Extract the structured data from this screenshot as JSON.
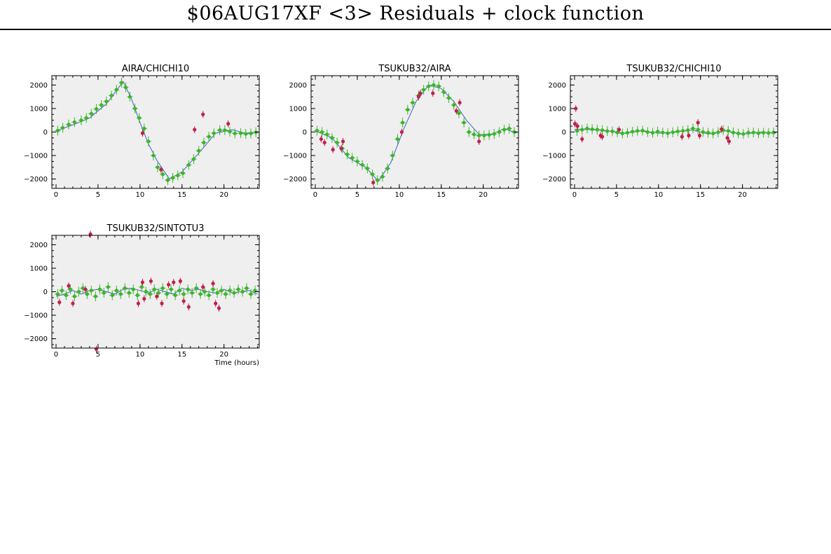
{
  "title": "$06AUG17XF <3> Residuals + clock function",
  "colors": {
    "good": "#3cb52a",
    "bad": "#c0204a",
    "clock": "#4060d0",
    "plot_bg": "#efefef"
  },
  "chart_data": [
    {
      "type": "scatter",
      "title": "AIRA/CHICHI10",
      "xlabel": "",
      "xlim": [
        -0.5,
        24.2
      ],
      "ylim": [
        -2400,
        2400
      ],
      "xticks": [
        0,
        5,
        10,
        15,
        20
      ],
      "yticks": [
        -2000,
        -1000,
        0,
        1000,
        2000
      ],
      "ytick_labels": [
        "−2000",
        "−1000",
        "0",
        "1000",
        "2000"
      ],
      "clock": [
        [
          0,
          50
        ],
        [
          2,
          300
        ],
        [
          4,
          600
        ],
        [
          6,
          1200
        ],
        [
          8,
          2150
        ],
        [
          9,
          1400
        ],
        [
          10,
          400
        ],
        [
          11,
          -500
        ],
        [
          12,
          -1200
        ],
        [
          13.5,
          -2000
        ],
        [
          15,
          -1700
        ],
        [
          17,
          -900
        ],
        [
          19,
          -50
        ],
        [
          21,
          100
        ],
        [
          22.5,
          -50
        ],
        [
          24,
          0
        ]
      ],
      "good": [
        [
          0.2,
          60
        ],
        [
          0.8,
          180
        ],
        [
          1.5,
          320
        ],
        [
          2.2,
          420
        ],
        [
          3,
          500
        ],
        [
          3.6,
          600
        ],
        [
          4.2,
          780
        ],
        [
          4.8,
          980
        ],
        [
          5.4,
          1150
        ],
        [
          6,
          1300
        ],
        [
          6.6,
          1550
        ],
        [
          7.2,
          1800
        ],
        [
          7.8,
          2100
        ],
        [
          8.3,
          1900
        ],
        [
          8.8,
          1500
        ],
        [
          9.4,
          1000
        ],
        [
          9.9,
          600
        ],
        [
          10.5,
          150
        ],
        [
          11,
          -400
        ],
        [
          11.6,
          -1000
        ],
        [
          12.1,
          -1500
        ],
        [
          12.7,
          -1800
        ],
        [
          13.3,
          -2050
        ],
        [
          13.9,
          -1950
        ],
        [
          14.5,
          -1850
        ],
        [
          15.1,
          -1750
        ],
        [
          15.8,
          -1400
        ],
        [
          16.4,
          -1150
        ],
        [
          17,
          -800
        ],
        [
          17.6,
          -450
        ],
        [
          18.2,
          -200
        ],
        [
          18.8,
          -50
        ],
        [
          19.5,
          80
        ],
        [
          20.1,
          80
        ],
        [
          20.7,
          20
        ],
        [
          21.3,
          -60
        ],
        [
          22,
          -50
        ],
        [
          22.6,
          -80
        ],
        [
          23.2,
          -60
        ],
        [
          23.8,
          -10
        ]
      ],
      "bad": [
        [
          10.3,
          -50
        ],
        [
          12.5,
          -1600
        ],
        [
          16.5,
          100
        ],
        [
          17.5,
          750
        ],
        [
          20.5,
          350
        ]
      ]
    },
    {
      "type": "scatter",
      "title": "TSUKUB32/AIRA",
      "xlabel": "",
      "xlim": [
        -0.5,
        24.2
      ],
      "ylim": [
        -2400,
        2400
      ],
      "xticks": [
        0,
        5,
        10,
        15,
        20
      ],
      "yticks": [
        -2000,
        -1000,
        0,
        1000,
        2000
      ],
      "ytick_labels": [
        "−2000",
        "−1000",
        "0",
        "1000",
        "2000"
      ],
      "clock": [
        [
          0,
          50
        ],
        [
          2,
          -250
        ],
        [
          4,
          -1100
        ],
        [
          6,
          -1500
        ],
        [
          7.5,
          -2100
        ],
        [
          9,
          -1300
        ],
        [
          10.5,
          100
        ],
        [
          12,
          1300
        ],
        [
          13.5,
          2000
        ],
        [
          15,
          1850
        ],
        [
          16.5,
          1300
        ],
        [
          18,
          500
        ],
        [
          19.5,
          -100
        ],
        [
          21,
          -100
        ],
        [
          22.5,
          150
        ],
        [
          24,
          -50
        ]
      ],
      "good": [
        [
          0.2,
          60
        ],
        [
          0.8,
          0
        ],
        [
          1.4,
          -100
        ],
        [
          2,
          -250
        ],
        [
          2.6,
          -450
        ],
        [
          3.2,
          -700
        ],
        [
          3.8,
          -950
        ],
        [
          4.4,
          -1100
        ],
        [
          5,
          -1250
        ],
        [
          5.6,
          -1400
        ],
        [
          6.2,
          -1550
        ],
        [
          6.8,
          -1800
        ],
        [
          7.4,
          -2050
        ],
        [
          8,
          -1900
        ],
        [
          8.6,
          -1550
        ],
        [
          9.2,
          -1000
        ],
        [
          9.8,
          -300
        ],
        [
          10.4,
          400
        ],
        [
          11,
          950
        ],
        [
          11.6,
          1250
        ],
        [
          12.3,
          1550
        ],
        [
          12.9,
          1800
        ],
        [
          13.5,
          1950
        ],
        [
          14.1,
          2000
        ],
        [
          14.7,
          1950
        ],
        [
          15.3,
          1700
        ],
        [
          15.9,
          1450
        ],
        [
          16.5,
          1150
        ],
        [
          17.1,
          800
        ],
        [
          17.7,
          400
        ],
        [
          18.3,
          0
        ],
        [
          18.9,
          -100
        ],
        [
          19.5,
          -150
        ],
        [
          20.1,
          -150
        ],
        [
          20.7,
          -120
        ],
        [
          21.3,
          -80
        ],
        [
          21.9,
          0
        ],
        [
          22.5,
          100
        ],
        [
          23.1,
          150
        ],
        [
          23.7,
          0
        ]
      ],
      "bad": [
        [
          0.7,
          -300
        ],
        [
          1.1,
          -450
        ],
        [
          2.1,
          -750
        ],
        [
          3.1,
          -700
        ],
        [
          3.3,
          -400
        ],
        [
          6.9,
          -2150
        ],
        [
          10.3,
          0
        ],
        [
          12.3,
          1500
        ],
        [
          12.5,
          1650
        ],
        [
          14,
          1650
        ],
        [
          16.8,
          900
        ],
        [
          17.2,
          1250
        ],
        [
          19.5,
          -400
        ]
      ]
    },
    {
      "type": "scatter",
      "title": "TSUKUB32/CHICHI10",
      "xlabel": "",
      "xlim": [
        -0.5,
        24.2
      ],
      "ylim": [
        -2400,
        2400
      ],
      "xticks": [
        0,
        5,
        10,
        15,
        20
      ],
      "yticks": [
        -2000,
        -1000,
        0,
        1000,
        2000
      ],
      "ytick_labels": [
        "−2000",
        "−1000",
        "0",
        "1000",
        "2000"
      ],
      "clock": [
        [
          0,
          120
        ],
        [
          2,
          100
        ],
        [
          4,
          50
        ],
        [
          6,
          -50
        ],
        [
          8,
          50
        ],
        [
          10,
          -50
        ],
        [
          12,
          0
        ],
        [
          14,
          80
        ],
        [
          16,
          -80
        ],
        [
          18,
          50
        ],
        [
          20,
          -100
        ],
        [
          22,
          0
        ],
        [
          24,
          -50
        ]
      ],
      "good": [
        [
          0.3,
          50
        ],
        [
          0.9,
          100
        ],
        [
          1.5,
          150
        ],
        [
          2.1,
          120
        ],
        [
          2.7,
          100
        ],
        [
          3.3,
          80
        ],
        [
          3.9,
          40
        ],
        [
          4.5,
          30
        ],
        [
          5.1,
          -20
        ],
        [
          5.7,
          -60
        ],
        [
          6.3,
          -30
        ],
        [
          6.9,
          20
        ],
        [
          7.5,
          50
        ],
        [
          8.1,
          60
        ],
        [
          8.7,
          0
        ],
        [
          9.3,
          -30
        ],
        [
          9.9,
          20
        ],
        [
          10.5,
          -20
        ],
        [
          11.1,
          -50
        ],
        [
          11.7,
          -10
        ],
        [
          12.3,
          30
        ],
        [
          12.9,
          50
        ],
        [
          13.5,
          80
        ],
        [
          14.1,
          150
        ],
        [
          14.7,
          100
        ],
        [
          15.3,
          0
        ],
        [
          15.9,
          -30
        ],
        [
          16.5,
          -60
        ],
        [
          17.1,
          -10
        ],
        [
          17.7,
          80
        ],
        [
          18.3,
          50
        ],
        [
          18.9,
          -20
        ],
        [
          19.5,
          -60
        ],
        [
          20.1,
          -80
        ],
        [
          20.7,
          -30
        ],
        [
          21.3,
          -20
        ],
        [
          21.9,
          -50
        ],
        [
          22.5,
          -30
        ],
        [
          23.1,
          -40
        ],
        [
          23.7,
          -20
        ]
      ],
      "bad": [
        [
          0.05,
          350
        ],
        [
          0.15,
          1000
        ],
        [
          0.35,
          250
        ],
        [
          0.9,
          -300
        ],
        [
          3.1,
          -150
        ],
        [
          3.3,
          -200
        ],
        [
          5.3,
          100
        ],
        [
          12.8,
          -200
        ],
        [
          13.6,
          -150
        ],
        [
          14.7,
          400
        ],
        [
          14.9,
          -150
        ],
        [
          17.5,
          120
        ],
        [
          18.2,
          -250
        ],
        [
          18.4,
          -400
        ]
      ]
    },
    {
      "type": "scatter",
      "title": "TSUKUB32/SINTOTU3",
      "xlabel": "Time (hours)",
      "xlim": [
        -0.5,
        24.2
      ],
      "ylim": [
        -2400,
        2400
      ],
      "xticks": [
        0,
        5,
        10,
        15,
        20
      ],
      "yticks": [
        -2000,
        -1000,
        0,
        1000,
        2000
      ],
      "ytick_labels": [
        "−2000",
        "−1000",
        "0",
        "1000",
        "2000"
      ],
      "clock": [
        [
          0,
          -200
        ],
        [
          1,
          -100
        ],
        [
          2,
          50
        ],
        [
          3,
          -100
        ],
        [
          4,
          50
        ],
        [
          5,
          100
        ],
        [
          6,
          0
        ],
        [
          7,
          -100
        ],
        [
          8,
          100
        ],
        [
          9,
          150
        ],
        [
          10,
          50
        ],
        [
          11,
          -50
        ],
        [
          12,
          100
        ],
        [
          13,
          0
        ],
        [
          14,
          -100
        ],
        [
          15,
          150
        ],
        [
          16,
          50
        ],
        [
          17,
          100
        ],
        [
          18,
          0
        ],
        [
          19,
          -50
        ],
        [
          20,
          100
        ],
        [
          21,
          -50
        ],
        [
          22,
          0
        ],
        [
          23,
          50
        ],
        [
          24,
          -100
        ]
      ],
      "good": [
        [
          0.2,
          -100
        ],
        [
          0.7,
          50
        ],
        [
          1.2,
          -150
        ],
        [
          1.7,
          100
        ],
        [
          2.2,
          -200
        ],
        [
          2.7,
          0
        ],
        [
          3.2,
          150
        ],
        [
          3.7,
          -100
        ],
        [
          4.2,
          50
        ],
        [
          4.7,
          -200
        ],
        [
          5.2,
          100
        ],
        [
          5.7,
          -50
        ],
        [
          6.2,
          200
        ],
        [
          6.7,
          -150
        ],
        [
          7.2,
          50
        ],
        [
          7.7,
          -100
        ],
        [
          8.2,
          150
        ],
        [
          8.7,
          -50
        ],
        [
          9.2,
          100
        ],
        [
          9.7,
          -150
        ],
        [
          10.2,
          200
        ],
        [
          10.7,
          0
        ],
        [
          11.2,
          -100
        ],
        [
          11.7,
          100
        ],
        [
          12.2,
          -50
        ],
        [
          12.7,
          150
        ],
        [
          13.2,
          -100
        ],
        [
          13.7,
          100
        ],
        [
          14.2,
          -150
        ],
        [
          14.7,
          50
        ],
        [
          15.2,
          -100
        ],
        [
          15.7,
          100
        ],
        [
          16.2,
          -50
        ],
        [
          16.7,
          150
        ],
        [
          17.2,
          -100
        ],
        [
          17.7,
          0
        ],
        [
          18.2,
          -150
        ],
        [
          18.7,
          100
        ],
        [
          19.2,
          -50
        ],
        [
          19.7,
          50
        ],
        [
          20.2,
          -100
        ],
        [
          20.7,
          50
        ],
        [
          21.2,
          -50
        ],
        [
          21.7,
          100
        ],
        [
          22.2,
          0
        ],
        [
          22.7,
          150
        ],
        [
          23.2,
          -100
        ],
        [
          23.7,
          50
        ]
      ],
      "bad": [
        [
          0.4,
          -450
        ],
        [
          1.5,
          250
        ],
        [
          2,
          -500
        ],
        [
          3.5,
          100
        ],
        [
          4.1,
          2450
        ],
        [
          4.8,
          -2450
        ],
        [
          9.8,
          -500
        ],
        [
          10.3,
          400
        ],
        [
          10.5,
          -300
        ],
        [
          11.3,
          450
        ],
        [
          12,
          -200
        ],
        [
          12.6,
          -500
        ],
        [
          13.4,
          300
        ],
        [
          14,
          400
        ],
        [
          14.8,
          450
        ],
        [
          15.2,
          -400
        ],
        [
          15.8,
          -650
        ],
        [
          17.5,
          200
        ],
        [
          18.7,
          350
        ],
        [
          19,
          -500
        ],
        [
          19.4,
          -700
        ]
      ]
    }
  ]
}
